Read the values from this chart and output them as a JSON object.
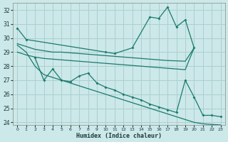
{
  "xlabel": "Humidex (Indice chaleur)",
  "color": "#1a7a6e",
  "bg_color": "#cce8e8",
  "grid_color": "#aad0d0",
  "ylim": [
    23.8,
    32.5
  ],
  "yticks": [
    24,
    25,
    26,
    27,
    28,
    29,
    30,
    31,
    32
  ],
  "xticks": [
    0,
    1,
    2,
    3,
    4,
    5,
    6,
    7,
    8,
    9,
    10,
    11,
    12,
    13,
    14,
    15,
    16,
    17,
    18,
    19,
    20,
    21,
    22,
    23
  ],
  "line_top_x": [
    0,
    1,
    10,
    11,
    13,
    15,
    16,
    17,
    18,
    19,
    20
  ],
  "line_top_y": [
    30.7,
    29.9,
    29.0,
    28.9,
    29.3,
    31.5,
    31.4,
    32.2,
    30.8,
    31.3,
    29.3
  ],
  "line_mid1_x": [
    0,
    1,
    2,
    3,
    4,
    5,
    6,
    7,
    8,
    9,
    10,
    11,
    12,
    13,
    14,
    15,
    16,
    17,
    18,
    19,
    20
  ],
  "line_mid1_y": [
    29.6,
    29.4,
    29.2,
    29.1,
    29.0,
    29.0,
    28.95,
    28.9,
    28.85,
    28.8,
    28.75,
    28.7,
    28.65,
    28.6,
    28.55,
    28.5,
    28.45,
    28.4,
    28.38,
    28.35,
    29.3
  ],
  "line_mid2_x": [
    0,
    1,
    2,
    3,
    4,
    5,
    6,
    7,
    8,
    9,
    10,
    11,
    12,
    13,
    14,
    15,
    16,
    17,
    18,
    19,
    20
  ],
  "line_mid2_y": [
    29.0,
    28.8,
    28.65,
    28.55,
    28.5,
    28.45,
    28.4,
    28.35,
    28.3,
    28.25,
    28.2,
    28.15,
    28.1,
    28.05,
    28.0,
    27.95,
    27.9,
    27.85,
    27.8,
    27.75,
    29.3
  ],
  "line_low_x": [
    2,
    3,
    4,
    5,
    6,
    7,
    8,
    9,
    10,
    11,
    12,
    13,
    14,
    15,
    16,
    17,
    18,
    19,
    20,
    21,
    22,
    23
  ],
  "line_low_y": [
    28.6,
    27.0,
    27.8,
    27.0,
    26.9,
    27.3,
    27.5,
    26.8,
    26.5,
    26.3,
    26.0,
    25.8,
    25.6,
    25.3,
    25.1,
    24.9,
    24.7,
    27.0,
    25.8,
    24.5,
    24.5,
    24.4
  ],
  "line_bottom_x": [
    0,
    1,
    2,
    3,
    4,
    5,
    6,
    7,
    8,
    9,
    10,
    11,
    12,
    13,
    14,
    15,
    16,
    17,
    18,
    19,
    20,
    21,
    22,
    23
  ],
  "line_bottom_y": [
    29.5,
    29.0,
    28.0,
    27.4,
    27.2,
    27.0,
    26.8,
    26.6,
    26.4,
    26.2,
    26.0,
    25.8,
    25.6,
    25.4,
    25.2,
    25.0,
    24.8,
    24.6,
    24.4,
    24.2,
    24.0,
    23.9,
    23.85,
    23.82
  ]
}
